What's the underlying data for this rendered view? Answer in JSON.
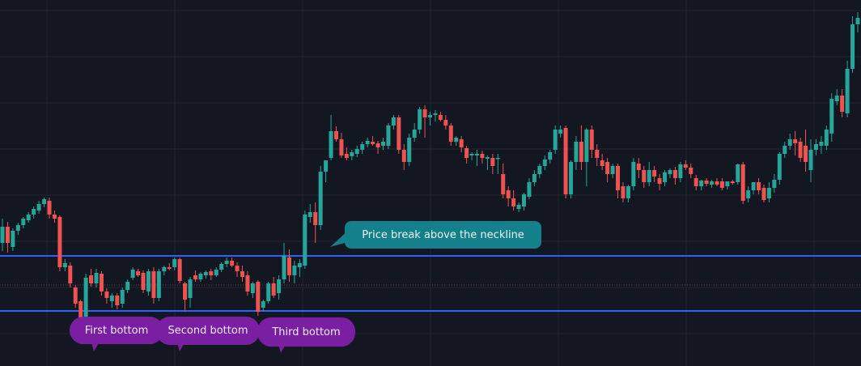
{
  "chart_data": {
    "type": "candlestick",
    "title": "",
    "xlabel": "",
    "ylabel": "",
    "price_range": [
      0,
      460
    ],
    "grid": true,
    "colors": {
      "background": "#131722",
      "up": "#26a69a",
      "down": "#ef5350",
      "levels": "#2962ff",
      "midline": "#7a3a3a",
      "grid": "#1f2432"
    },
    "levels": [
      {
        "role": "neckline",
        "price": 144,
        "style": "solid"
      },
      {
        "role": "support",
        "price": 76,
        "style": "solid"
      },
      {
        "role": "mid",
        "price": 108,
        "style": "dotted"
      }
    ],
    "candles": [
      [
        160,
        190,
        150,
        180
      ],
      [
        180,
        186,
        148,
        160
      ],
      [
        155,
        178,
        150,
        175
      ],
      [
        175,
        185,
        170,
        182
      ],
      [
        182,
        192,
        178,
        190
      ],
      [
        188,
        198,
        185,
        195
      ],
      [
        195,
        205,
        190,
        202
      ],
      [
        200,
        212,
        196,
        208
      ],
      [
        208,
        216,
        204,
        214
      ],
      [
        212,
        216,
        190,
        195
      ],
      [
        195,
        200,
        185,
        190
      ],
      [
        192,
        194,
        125,
        130
      ],
      [
        130,
        140,
        125,
        135
      ],
      [
        132,
        136,
        105,
        110
      ],
      [
        105,
        108,
        80,
        85
      ],
      [
        88,
        90,
        60,
        65
      ],
      [
        60,
        122,
        52,
        117
      ],
      [
        120,
        128,
        106,
        110
      ],
      [
        110,
        128,
        105,
        123
      ],
      [
        122,
        125,
        95,
        100
      ],
      [
        100,
        104,
        85,
        92
      ],
      [
        88,
        98,
        80,
        95
      ],
      [
        95,
        98,
        78,
        83
      ],
      [
        85,
        105,
        80,
        102
      ],
      [
        102,
        115,
        98,
        112
      ],
      [
        117,
        130,
        114,
        127
      ],
      [
        125,
        128,
        118,
        120
      ],
      [
        123,
        126,
        98,
        102
      ],
      [
        100,
        128,
        95,
        125
      ],
      [
        125,
        130,
        85,
        92
      ],
      [
        92,
        128,
        88,
        125
      ],
      [
        125,
        132,
        120,
        130
      ],
      [
        130,
        135,
        126,
        128
      ],
      [
        130,
        142,
        126,
        140
      ],
      [
        140,
        142,
        110,
        113
      ],
      [
        110,
        112,
        75,
        90
      ],
      [
        92,
        118,
        80,
        115
      ],
      [
        120,
        126,
        112,
        115
      ],
      [
        115,
        124,
        112,
        122
      ],
      [
        120,
        126,
        116,
        124
      ],
      [
        125,
        128,
        114,
        120
      ],
      [
        120,
        130,
        118,
        127
      ],
      [
        127,
        136,
        124,
        134
      ],
      [
        134,
        142,
        130,
        138
      ],
      [
        138,
        142,
        130,
        132
      ],
      [
        132,
        136,
        118,
        125
      ],
      [
        125,
        132,
        112,
        118
      ],
      [
        120,
        125,
        95,
        100
      ],
      [
        98,
        112,
        92,
        110
      ],
      [
        112,
        114,
        70,
        75
      ],
      [
        80,
        90,
        75,
        88
      ],
      [
        88,
        112,
        85,
        110
      ],
      [
        110,
        118,
        92,
        95
      ],
      [
        98,
        120,
        90,
        115
      ],
      [
        115,
        160,
        110,
        144
      ],
      [
        142,
        152,
        112,
        120
      ],
      [
        120,
        138,
        110,
        132
      ],
      [
        130,
        140,
        118,
        135
      ],
      [
        132,
        200,
        128,
        195
      ],
      [
        192,
        208,
        185,
        198
      ],
      [
        198,
        210,
        160,
        182
      ],
      [
        182,
        255,
        176,
        248
      ],
      [
        248,
        262,
        235,
        262
      ],
      [
        265,
        318,
        262,
        298
      ],
      [
        298,
        304,
        285,
        288
      ],
      [
        288,
        296,
        265,
        268
      ],
      [
        270,
        278,
        262,
        265
      ],
      [
        267,
        275,
        262,
        272
      ],
      [
        270,
        280,
        266,
        276
      ],
      [
        275,
        285,
        270,
        282
      ],
      [
        282,
        290,
        278,
        286
      ],
      [
        285,
        292,
        280,
        282
      ],
      [
        283,
        286,
        270,
        278
      ],
      [
        280,
        290,
        275,
        285
      ],
      [
        280,
        308,
        276,
        305
      ],
      [
        305,
        318,
        300,
        315
      ],
      [
        315,
        318,
        270,
        275
      ],
      [
        275,
        282,
        250,
        260
      ],
      [
        260,
        295,
        255,
        290
      ],
      [
        290,
        308,
        285,
        300
      ],
      [
        300,
        328,
        295,
        325
      ],
      [
        325,
        330,
        290,
        315
      ],
      [
        315,
        322,
        305,
        318
      ],
      [
        318,
        324,
        310,
        320
      ],
      [
        318,
        322,
        310,
        312
      ],
      [
        312,
        318,
        300,
        305
      ],
      [
        305,
        308,
        280,
        285
      ],
      [
        285,
        292,
        280,
        290
      ],
      [
        288,
        292,
        272,
        278
      ],
      [
        277,
        280,
        258,
        265
      ],
      [
        268,
        272,
        262,
        270
      ],
      [
        268,
        275,
        255,
        270
      ],
      [
        270,
        274,
        258,
        265
      ],
      [
        264,
        268,
        250,
        266
      ],
      [
        265,
        270,
        245,
        255
      ],
      [
        264,
        270,
        245,
        265
      ],
      [
        245,
        258,
        215,
        220
      ],
      [
        225,
        230,
        205,
        215
      ],
      [
        215,
        225,
        200,
        205
      ],
      [
        202,
        210,
        198,
        207
      ],
      [
        205,
        222,
        200,
        220
      ],
      [
        217,
        240,
        214,
        235
      ],
      [
        235,
        250,
        230,
        245
      ],
      [
        245,
        258,
        240,
        255
      ],
      [
        255,
        268,
        250,
        263
      ],
      [
        263,
        275,
        258,
        272
      ],
      [
        275,
        305,
        270,
        300
      ],
      [
        295,
        305,
        290,
        300
      ],
      [
        302,
        305,
        215,
        220
      ],
      [
        220,
        262,
        215,
        260
      ],
      [
        260,
        292,
        250,
        285
      ],
      [
        285,
        305,
        250,
        260
      ],
      [
        260,
        302,
        230,
        300
      ],
      [
        300,
        305,
        265,
        275
      ],
      [
        275,
        282,
        255,
        265
      ],
      [
        262,
        270,
        250,
        255
      ],
      [
        260,
        265,
        235,
        245
      ],
      [
        245,
        258,
        240,
        255
      ],
      [
        255,
        258,
        215,
        225
      ],
      [
        230,
        235,
        210,
        215
      ],
      [
        215,
        232,
        210,
        230
      ],
      [
        230,
        265,
        225,
        260
      ],
      [
        258,
        265,
        240,
        250
      ],
      [
        250,
        255,
        228,
        235
      ],
      [
        235,
        260,
        230,
        250
      ],
      [
        250,
        255,
        235,
        242
      ],
      [
        240,
        245,
        225,
        233
      ],
      [
        235,
        250,
        230,
        247
      ],
      [
        245,
        252,
        240,
        250
      ],
      [
        250,
        254,
        232,
        240
      ],
      [
        240,
        260,
        235,
        257
      ],
      [
        257,
        262,
        250,
        253
      ],
      [
        253,
        258,
        240,
        245
      ],
      [
        240,
        244,
        225,
        230
      ],
      [
        230,
        238,
        225,
        237
      ],
      [
        237,
        240,
        230,
        233
      ],
      [
        232,
        238,
        228,
        236
      ],
      [
        236,
        240,
        230,
        232
      ],
      [
        236,
        240,
        225,
        228
      ],
      [
        230,
        236,
        226,
        236
      ],
      [
        236,
        238,
        232,
        234
      ],
      [
        235,
        258,
        232,
        257
      ],
      [
        257,
        260,
        208,
        212
      ],
      [
        215,
        230,
        210,
        225
      ],
      [
        225,
        235,
        220,
        235
      ],
      [
        235,
        240,
        220,
        225
      ],
      [
        228,
        232,
        210,
        213
      ],
      [
        215,
        235,
        210,
        228
      ],
      [
        228,
        245,
        222,
        238
      ],
      [
        238,
        272,
        232,
        270
      ],
      [
        270,
        285,
        265,
        280
      ],
      [
        280,
        295,
        275,
        288
      ],
      [
        288,
        298,
        268,
        283
      ],
      [
        285,
        290,
        260,
        265
      ],
      [
        280,
        300,
        248,
        260
      ],
      [
        250,
        288,
        235,
        275
      ],
      [
        275,
        288,
        268,
        282
      ],
      [
        280,
        292,
        270,
        285
      ],
      [
        280,
        305,
        275,
        300
      ],
      [
        295,
        345,
        285,
        338
      ],
      [
        335,
        350,
        330,
        342
      ],
      [
        342,
        350,
        315,
        322
      ],
      [
        320,
        385,
        315,
        375
      ],
      [
        375,
        440,
        370,
        430
      ],
      [
        430,
        445,
        420,
        438
      ]
    ],
    "annotations": [
      {
        "text": "First bottom",
        "color": "#7b1fa2"
      },
      {
        "text": "Second bottom",
        "color": "#7b1fa2"
      },
      {
        "text": "Third bottom",
        "color": "#7b1fa2"
      },
      {
        "text": "Price break above the neckline",
        "color": "#14808c"
      }
    ]
  }
}
